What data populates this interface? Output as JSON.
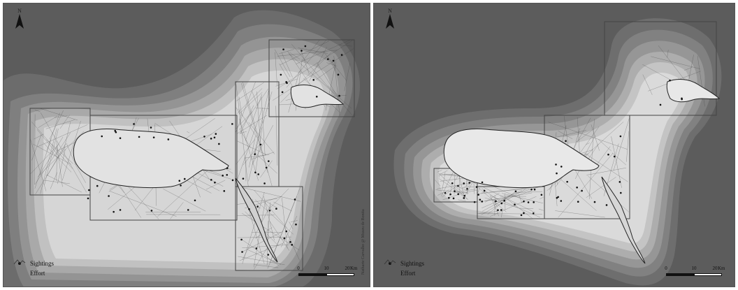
{
  "left_panel": {
    "north_label": "N",
    "legend": {
      "sightings_label": "Sightings",
      "effort_label": "Effort"
    },
    "scale": {
      "tick_0": "0",
      "tick_10": "10",
      "tick_20": "20",
      "unit": "Km"
    },
    "credit": "Natharte Carvalho @ Museu de Bonita"
  },
  "right_panel": {
    "north_label": "N",
    "legend": {
      "sightings_label": "Sightings",
      "effort_label": "Effort"
    },
    "scale": {
      "tick_0": "0",
      "tick_10": "10",
      "tick_20": "20",
      "unit": "Km"
    }
  },
  "colors": {
    "deep_water": "#5c5c5c",
    "island_fill": "#e2e2e2",
    "effort_line": "#3a3a3a",
    "sighting_dot": "#111111"
  }
}
